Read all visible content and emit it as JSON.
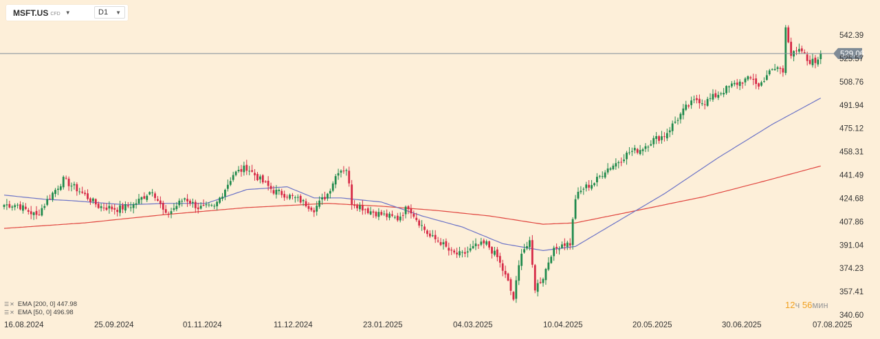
{
  "instrument": {
    "symbol": "MSFT.US",
    "tag": "CFD"
  },
  "timeframe": "D1",
  "colors": {
    "background": "#fdefd9",
    "up": "#1f8a4c",
    "down": "#d62845",
    "ema200": "#e0443e",
    "ema50": "#6b73c7",
    "price_line": "#7d8b99",
    "price_badge": "#7f8b96",
    "axis_text": "#333333"
  },
  "indicators": [
    {
      "label": "EMA [200, 0]",
      "value": "447.98"
    },
    {
      "label": "EMA [50, 0]",
      "value": "496.98"
    }
  ],
  "countdown": {
    "hours": "12",
    "hours_unit": "ч",
    "minutes": "56",
    "minutes_unit": "мин"
  },
  "chart_data": {
    "type": "candlestick",
    "price_axis_side": "right",
    "y_ticks": [
      "542.39",
      "525.57",
      "508.76",
      "491.94",
      "475.12",
      "458.31",
      "441.49",
      "424.68",
      "407.86",
      "391.04",
      "374.23",
      "357.41",
      "340.60"
    ],
    "x_ticks": [
      "16.08.2024",
      "25.09.2024",
      "01.11.2024",
      "11.12.2024",
      "23.01.2025",
      "04.03.2025",
      "10.04.2025",
      "20.05.2025",
      "30.06.2025",
      "07.08.2025"
    ],
    "ylim": [
      340.6,
      556
    ],
    "current_price": "529.06",
    "anchors": [
      [
        0,
        420
      ],
      [
        5,
        420
      ],
      [
        12,
        412
      ],
      [
        17,
        426
      ],
      [
        22,
        438
      ],
      [
        28,
        430
      ],
      [
        35,
        419
      ],
      [
        42,
        417
      ],
      [
        48,
        420
      ],
      [
        55,
        431
      ],
      [
        60,
        412
      ],
      [
        67,
        425
      ],
      [
        72,
        418
      ],
      [
        78,
        418
      ],
      [
        85,
        442
      ],
      [
        90,
        447
      ],
      [
        95,
        438
      ],
      [
        100,
        430
      ],
      [
        105,
        427
      ],
      [
        110,
        423
      ],
      [
        115,
        417
      ],
      [
        120,
        428
      ],
      [
        124,
        445
      ],
      [
        127,
        446
      ],
      [
        129,
        422
      ],
      [
        135,
        416
      ],
      [
        140,
        413
      ],
      [
        146,
        410
      ],
      [
        150,
        419
      ],
      [
        153,
        410
      ],
      [
        158,
        397
      ],
      [
        162,
        393
      ],
      [
        166,
        385
      ],
      [
        170,
        384
      ],
      [
        175,
        390
      ],
      [
        179,
        392
      ],
      [
        183,
        382
      ],
      [
        187,
        364
      ],
      [
        189,
        352
      ],
      [
        192,
        387
      ],
      [
        195,
        392
      ],
      [
        197,
        360
      ],
      [
        200,
        368
      ],
      [
        203,
        385
      ],
      [
        207,
        392
      ],
      [
        210,
        392
      ],
      [
        212,
        425
      ],
      [
        215,
        432
      ],
      [
        219,
        436
      ],
      [
        223,
        445
      ],
      [
        227,
        450
      ],
      [
        232,
        458
      ],
      [
        236,
        460
      ],
      [
        241,
        467
      ],
      [
        245,
        470
      ],
      [
        249,
        480
      ],
      [
        253,
        490
      ],
      [
        257,
        496
      ],
      [
        260,
        494
      ],
      [
        265,
        500
      ],
      [
        270,
        506
      ],
      [
        275,
        510
      ],
      [
        278,
        511
      ],
      [
        280,
        505
      ],
      [
        283,
        514
      ],
      [
        287,
        519
      ],
      [
        289,
        516
      ],
      [
        290,
        550
      ],
      [
        292,
        528
      ],
      [
        296,
        531
      ],
      [
        298,
        524
      ],
      [
        301,
        523
      ],
      [
        303,
        529
      ]
    ],
    "ema50_anchors": [
      [
        0,
        427
      ],
      [
        15,
        424
      ],
      [
        25,
        423
      ],
      [
        45,
        420
      ],
      [
        60,
        421
      ],
      [
        75,
        421
      ],
      [
        90,
        431
      ],
      [
        105,
        433
      ],
      [
        115,
        425
      ],
      [
        125,
        425
      ],
      [
        140,
        422
      ],
      [
        155,
        412
      ],
      [
        170,
        404
      ],
      [
        185,
        392
      ],
      [
        200,
        387
      ],
      [
        212,
        390
      ],
      [
        225,
        405
      ],
      [
        245,
        428
      ],
      [
        265,
        454
      ],
      [
        285,
        478
      ],
      [
        303,
        496.98
      ]
    ],
    "ema200_anchors": [
      [
        0,
        403
      ],
      [
        30,
        407
      ],
      [
        60,
        413
      ],
      [
        90,
        418
      ],
      [
        120,
        421
      ],
      [
        140,
        419
      ],
      [
        160,
        416
      ],
      [
        180,
        412
      ],
      [
        200,
        406
      ],
      [
        212,
        407
      ],
      [
        230,
        414
      ],
      [
        260,
        426
      ],
      [
        280,
        436
      ],
      [
        303,
        447.98
      ]
    ]
  }
}
